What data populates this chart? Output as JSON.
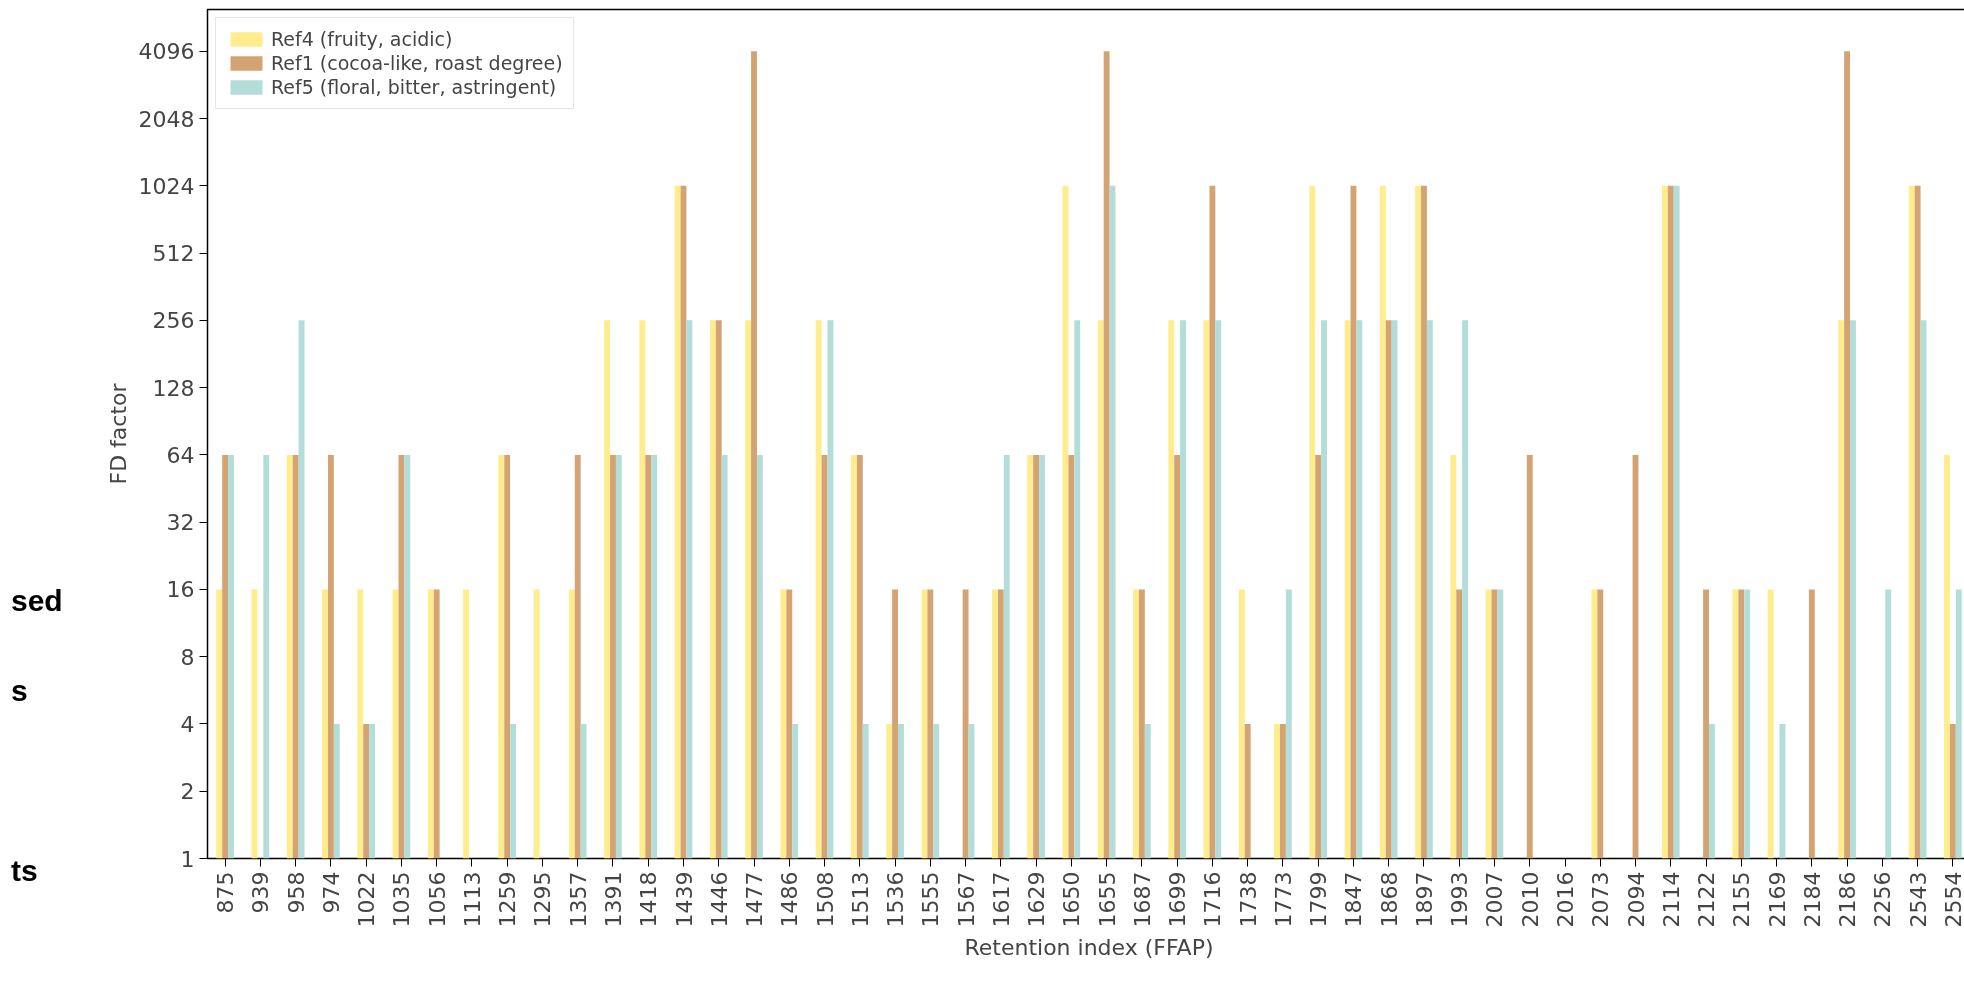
{
  "chart_data": {
    "type": "bar",
    "xlabel": "Retention index (FFAP)",
    "ylabel": "FD factor",
    "categories": [
      "875",
      "939",
      "958",
      "974",
      "1022",
      "1035",
      "1056",
      "1113",
      "1259",
      "1295",
      "1357",
      "1391",
      "1418",
      "1439",
      "1446",
      "1477",
      "1486",
      "1508",
      "1513",
      "1536",
      "1555",
      "1567",
      "1617",
      "1629",
      "1650",
      "1655",
      "1687",
      "1699",
      "1716",
      "1738",
      "1773",
      "1799",
      "1847",
      "1868",
      "1897",
      "1993",
      "2007",
      "2010",
      "2016",
      "2073",
      "2094",
      "2114",
      "2122",
      "2155",
      "2169",
      "2184",
      "2186",
      "2256",
      "2543",
      "2554"
    ],
    "series": [
      {
        "name": "Ref4 (fruity, acidic)",
        "color": "#ffec8c",
        "values": [
          16,
          16,
          64,
          16,
          16,
          16,
          16,
          16,
          64,
          16,
          16,
          256,
          256,
          1024,
          256,
          256,
          16,
          256,
          64,
          4,
          16,
          null,
          16,
          64,
          1024,
          256,
          16,
          256,
          256,
          16,
          4,
          1024,
          256,
          1024,
          1024,
          64,
          16,
          null,
          null,
          16,
          null,
          1024,
          null,
          16,
          16,
          null,
          256,
          null,
          1024,
          64
        ]
      },
      {
        "name": "Ref1 (cocoa-like, roast degree)",
        "color": "#d4a373",
        "values": [
          64,
          null,
          64,
          64,
          4,
          64,
          16,
          null,
          64,
          null,
          64,
          64,
          64,
          1024,
          256,
          4096,
          16,
          64,
          64,
          16,
          16,
          16,
          16,
          64,
          64,
          4096,
          16,
          64,
          1024,
          4,
          4,
          64,
          1024,
          256,
          1024,
          16,
          16,
          64,
          null,
          16,
          64,
          1024,
          16,
          16,
          null,
          16,
          4096,
          null,
          1024,
          4
        ]
      },
      {
        "name": "Ref5 (floral, bitter, astringent)",
        "color": "#b3ddd8",
        "values": [
          64,
          64,
          256,
          4,
          4,
          64,
          null,
          null,
          4,
          null,
          4,
          64,
          64,
          256,
          64,
          64,
          4,
          256,
          4,
          4,
          4,
          4,
          64,
          64,
          256,
          1024,
          4,
          256,
          256,
          null,
          16,
          256,
          256,
          256,
          256,
          256,
          16,
          null,
          null,
          null,
          null,
          1024,
          4,
          16,
          4,
          null,
          256,
          16,
          256,
          16
        ]
      }
    ],
    "log": "y",
    "ylim": [
      1,
      6300
    ],
    "yticks": [
      1,
      2,
      4,
      8,
      16,
      32,
      64,
      128,
      256,
      512,
      1024,
      2048,
      4096
    ],
    "grid": false,
    "legend": "top left",
    "annotations": [
      "sed",
      "s",
      "ts"
    ]
  }
}
